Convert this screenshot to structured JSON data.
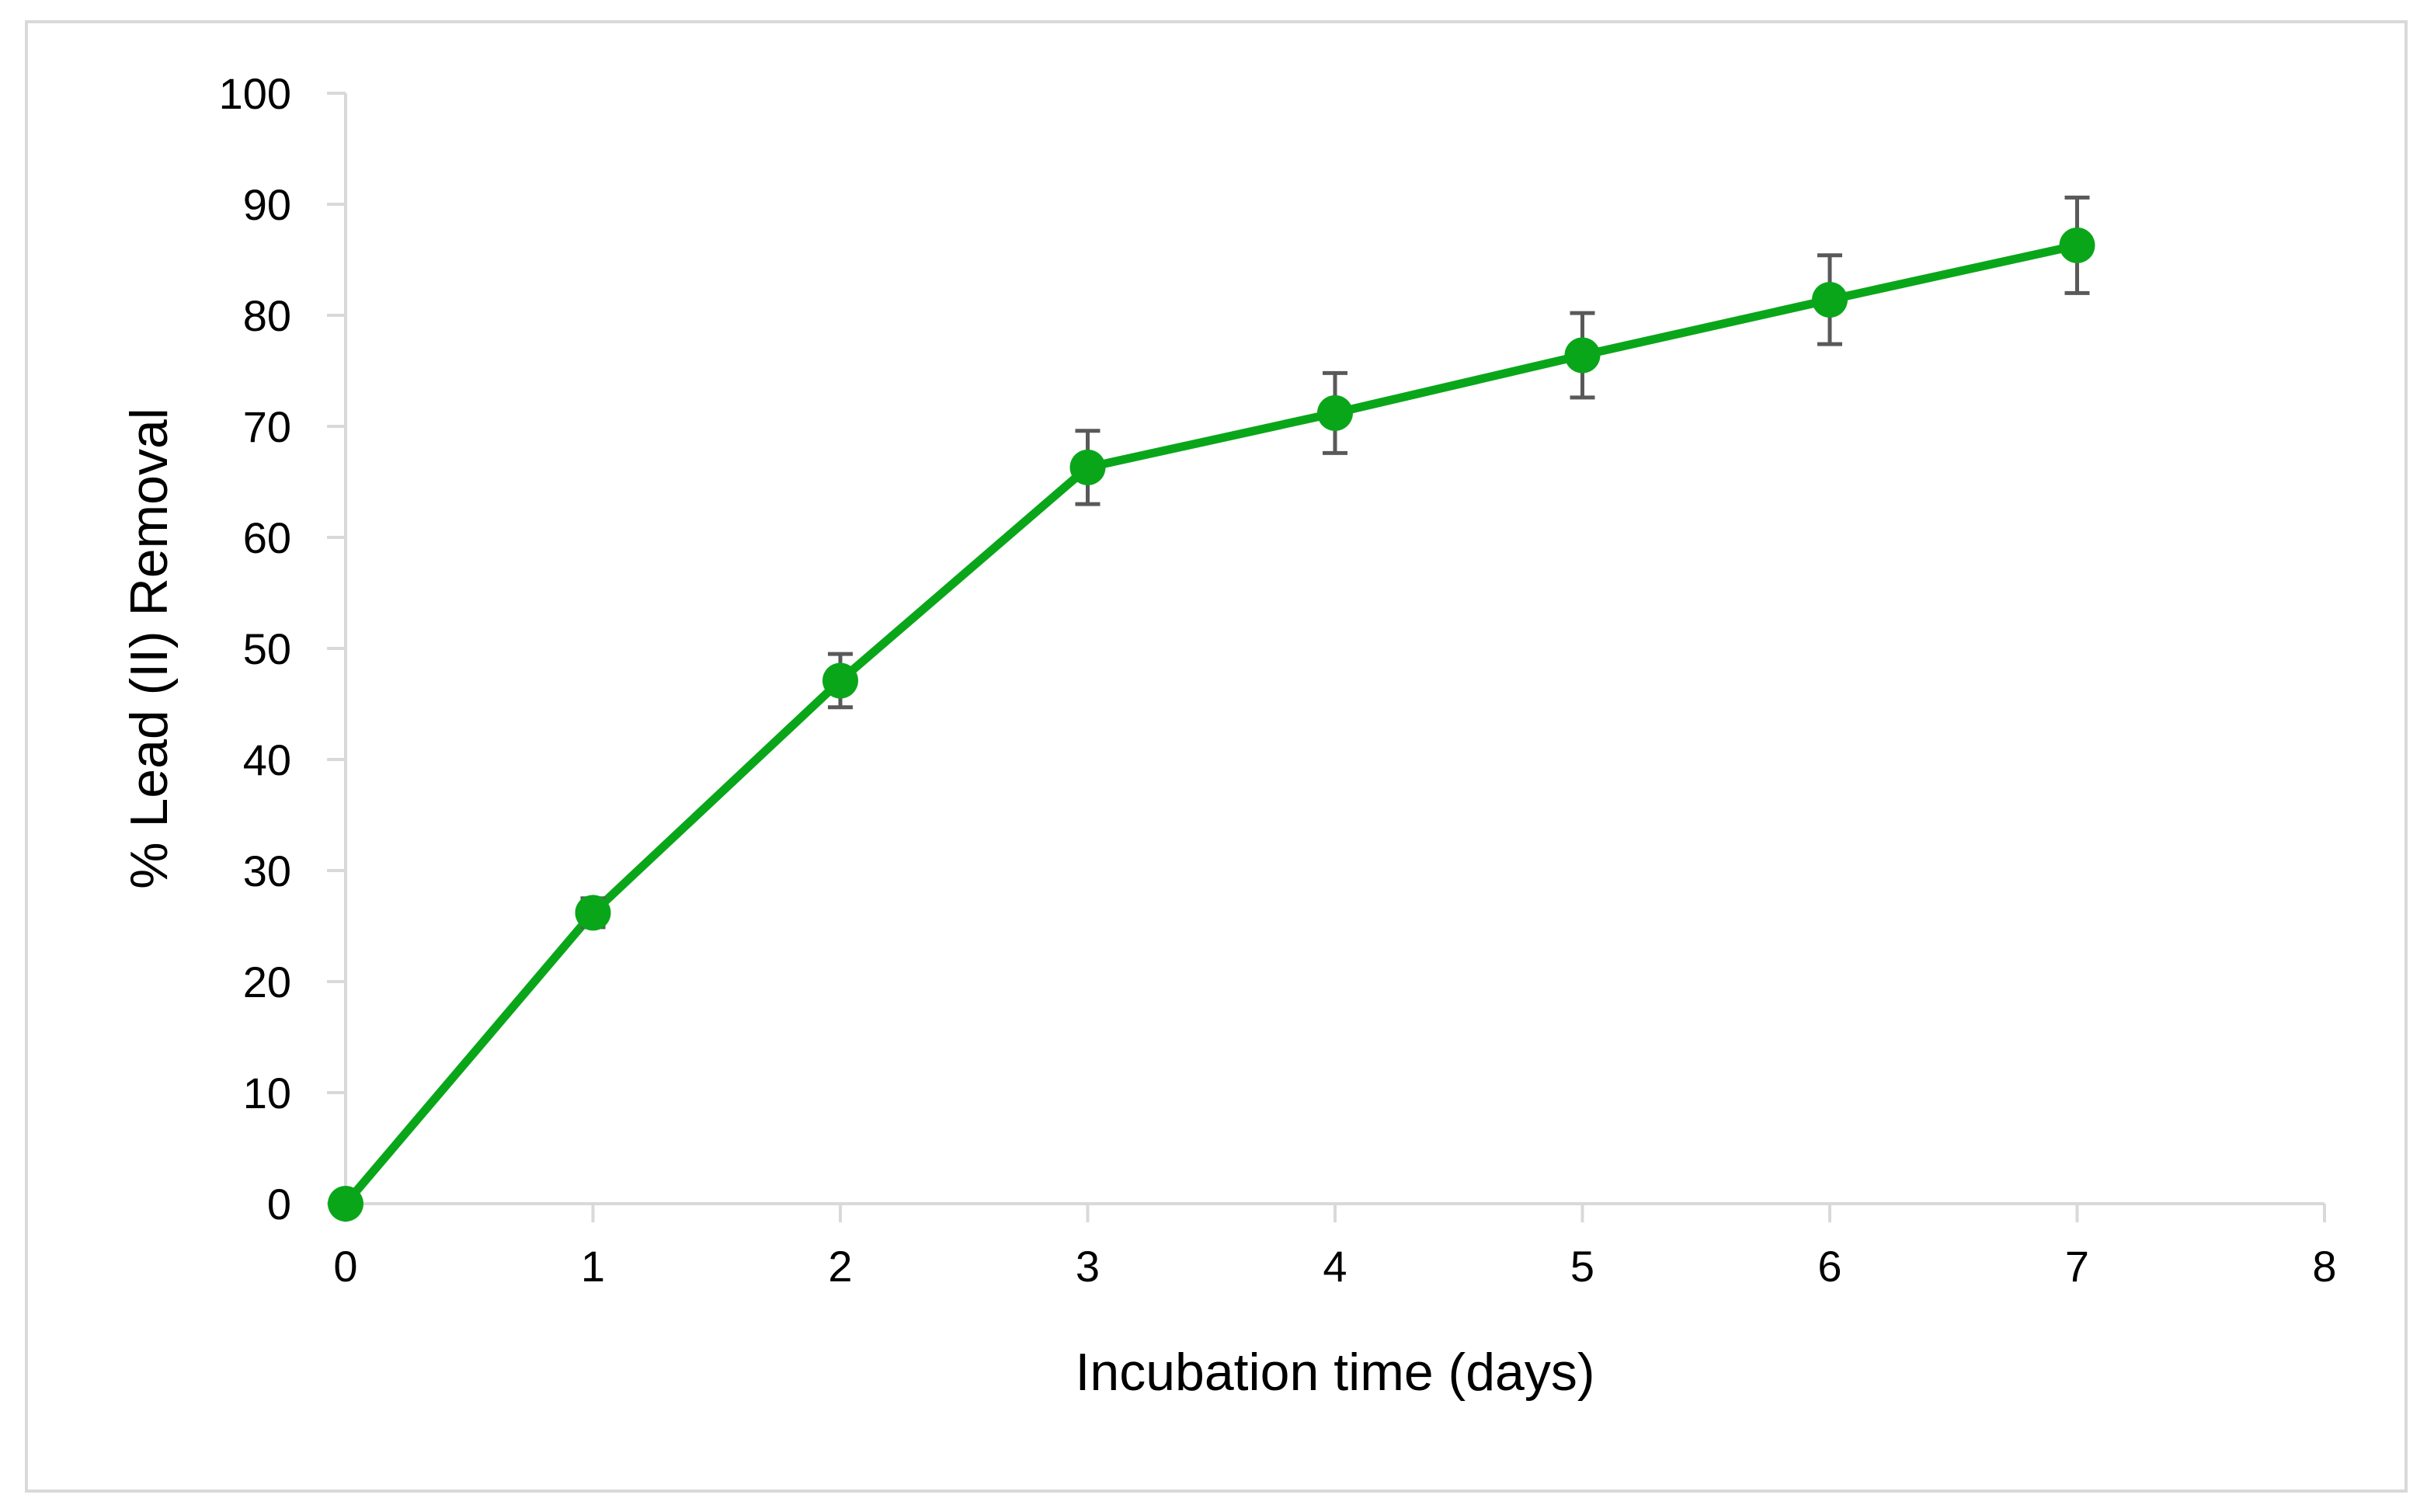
{
  "chart_data": {
    "type": "line",
    "title": "",
    "xlabel": "Incubation time (days)",
    "ylabel": "% Lead (II) Removal",
    "xlim": [
      0,
      8
    ],
    "ylim": [
      0,
      100
    ],
    "x_ticks": [
      0,
      1,
      2,
      3,
      4,
      5,
      6,
      7,
      8
    ],
    "y_ticks": [
      0,
      10,
      20,
      30,
      40,
      50,
      60,
      70,
      80,
      90,
      100
    ],
    "grid": false,
    "legend": "none",
    "series": [
      {
        "color": "#0aa61a",
        "x": [
          0,
          1,
          2,
          3,
          4,
          5,
          6,
          7
        ],
        "y": [
          0,
          26.2,
          47.1,
          66.3,
          71.2,
          76.4,
          81.4,
          86.3
        ],
        "error": [
          0,
          1.3,
          2.4,
          3.3,
          3.6,
          3.8,
          4.0,
          4.3
        ]
      }
    ],
    "axis_color": "#d9d9d9",
    "error_bar_color": "#595959"
  }
}
